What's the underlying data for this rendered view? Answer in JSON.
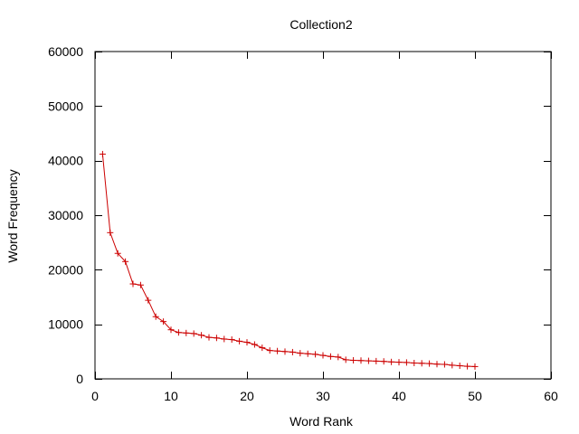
{
  "chart_data": {
    "type": "line",
    "title": "Collection2",
    "xlabel": "Word Rank",
    "ylabel": "Word Frequency",
    "xlim": [
      0,
      60
    ],
    "ylim": [
      0,
      60000
    ],
    "xticks": [
      0,
      10,
      20,
      30,
      40,
      50,
      60
    ],
    "yticks": [
      0,
      10000,
      20000,
      30000,
      40000,
      50000,
      60000
    ],
    "grid": false,
    "legend": "none",
    "marker": "plus",
    "series_color": "#cc0000",
    "series": [
      {
        "x": [
          1,
          2,
          3,
          4,
          5,
          6,
          7,
          8,
          9,
          10,
          11,
          12,
          13,
          14,
          15,
          16,
          17,
          18,
          19,
          20,
          21,
          22,
          23,
          24,
          25,
          26,
          27,
          28,
          29,
          30,
          31,
          32,
          33,
          34,
          35,
          36,
          37,
          38,
          39,
          40,
          41,
          42,
          43,
          44,
          45,
          46,
          47,
          48,
          49,
          50
        ],
        "values": [
          41200,
          26800,
          23000,
          21500,
          17400,
          17200,
          14400,
          11400,
          10500,
          9000,
          8500,
          8400,
          8300,
          8000,
          7600,
          7500,
          7300,
          7200,
          6900,
          6700,
          6300,
          5700,
          5200,
          5100,
          5000,
          4900,
          4700,
          4600,
          4500,
          4300,
          4100,
          4000,
          3500,
          3400,
          3350,
          3300,
          3250,
          3200,
          3100,
          3050,
          3000,
          2900,
          2850,
          2800,
          2700,
          2650,
          2500,
          2400,
          2300,
          2250
        ]
      }
    ]
  }
}
